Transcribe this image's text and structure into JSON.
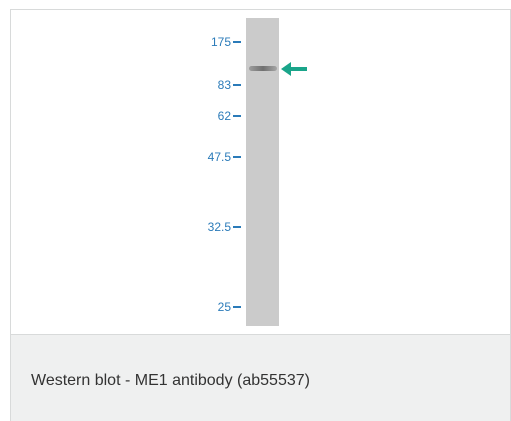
{
  "blot": {
    "markers": [
      "175",
      "83",
      "62",
      "47.5",
      "32.5",
      "25"
    ],
    "lane_color": "#cbcbcb",
    "marker_color": "#2b7bb9",
    "arrow_color": "#1aa58a"
  },
  "caption": {
    "text": "Western blot - ME1 antibody (ab55537)"
  }
}
